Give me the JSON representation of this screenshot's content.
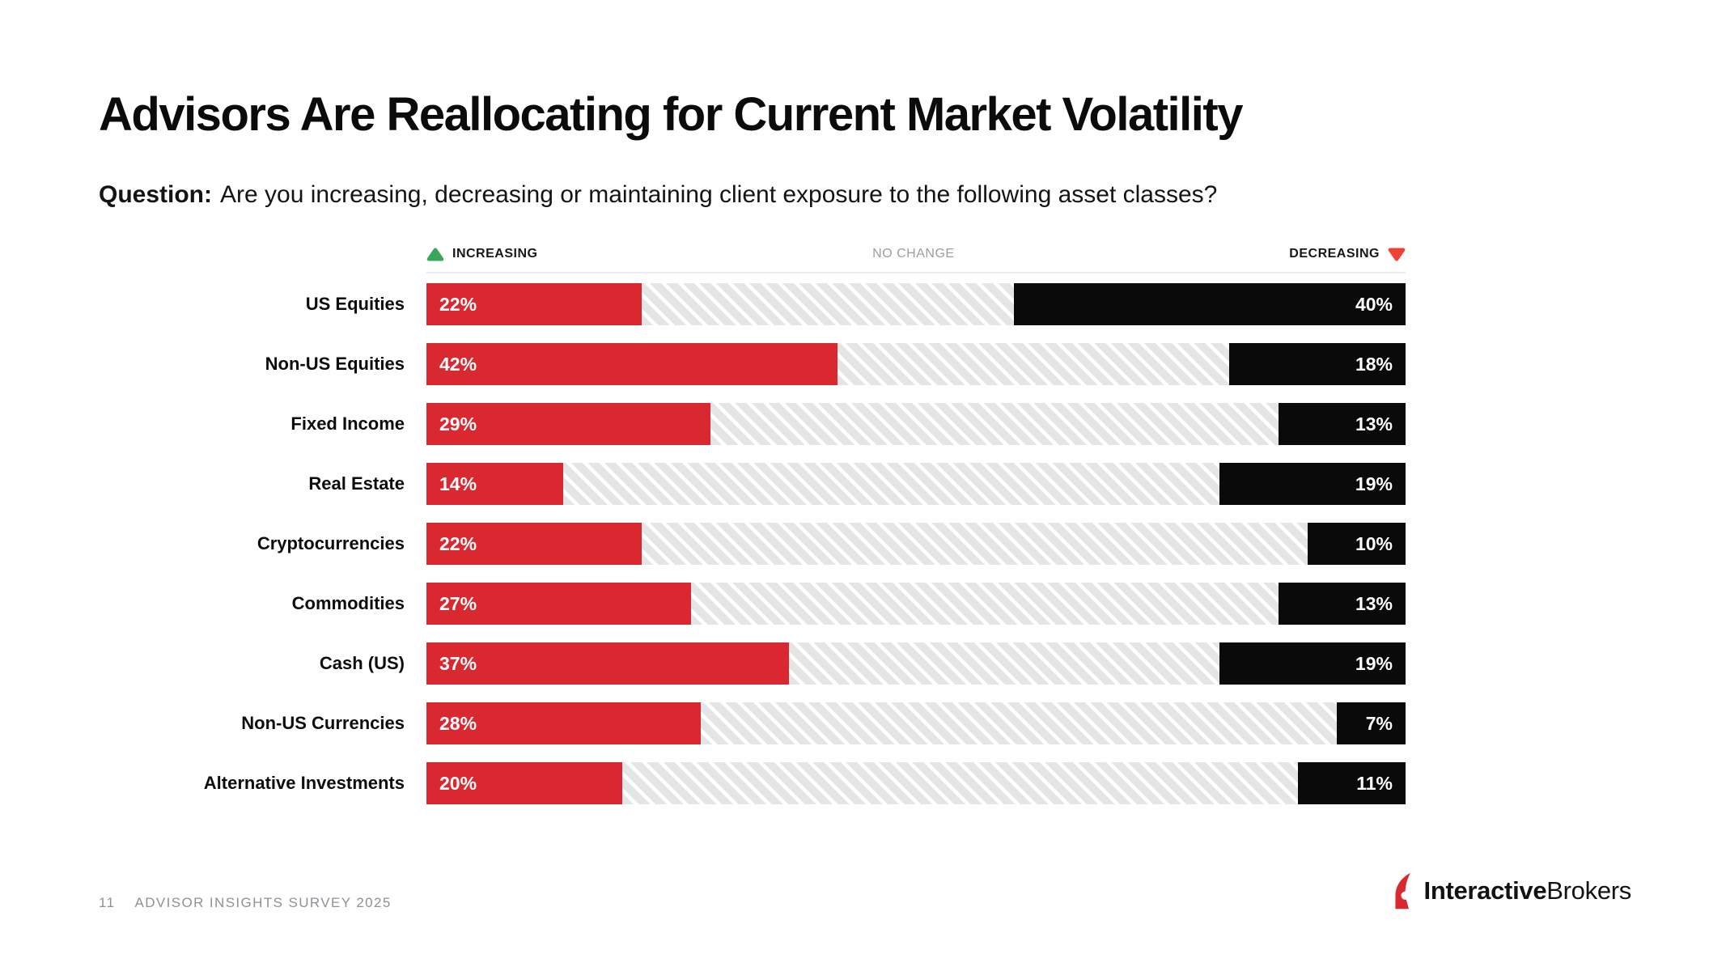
{
  "title": "Advisors Are Reallocating for Current Market Volatility",
  "question": {
    "label": "Question:",
    "text": "Are you increasing, decreasing or maintaining client exposure to the following asset classes?"
  },
  "legend": {
    "increasing": "INCREASING",
    "no_change": "NO CHANGE",
    "decreasing": "DECREASING"
  },
  "chart_data": {
    "type": "bar",
    "subtype": "horizontal-stacked-100pct",
    "title": "Advisors Are Reallocating for Current Market Volatility",
    "categories": [
      "US Equities",
      "Non-US Equities",
      "Fixed Income",
      "Real Estate",
      "Cryptocurrencies",
      "Commodities",
      "Cash (US)",
      "Non-US Currencies",
      "Alternative Investments"
    ],
    "series": [
      {
        "name": "Increasing",
        "values": [
          22,
          42,
          29,
          14,
          22,
          27,
          37,
          28,
          20
        ]
      },
      {
        "name": "No Change",
        "values": [
          38,
          40,
          58,
          67,
          68,
          60,
          44,
          65,
          69
        ]
      },
      {
        "name": "Decreasing",
        "values": [
          40,
          18,
          13,
          19,
          10,
          13,
          19,
          7,
          11
        ]
      }
    ],
    "labeled_series": [
      "Increasing",
      "Decreasing"
    ],
    "value_format": "percent",
    "xlim": [
      0,
      100
    ],
    "grid": false,
    "legend_position": "top"
  },
  "colors": {
    "increasing_bar": "#d9282f",
    "decreasing_bar": "#0a0a0a",
    "no_change_bg": "#e4e5e7",
    "no_change_stripe": "#ffffff",
    "legend_up_triangle": "#3aa55d",
    "legend_down_triangle": "#ef4136",
    "muted_text": "#8d9196"
  },
  "footer": {
    "page_number": "11",
    "survey_label": "ADVISOR INSIGHTS SURVEY 2025",
    "brand_bold": "Interactive",
    "brand_regular": "Brokers"
  }
}
